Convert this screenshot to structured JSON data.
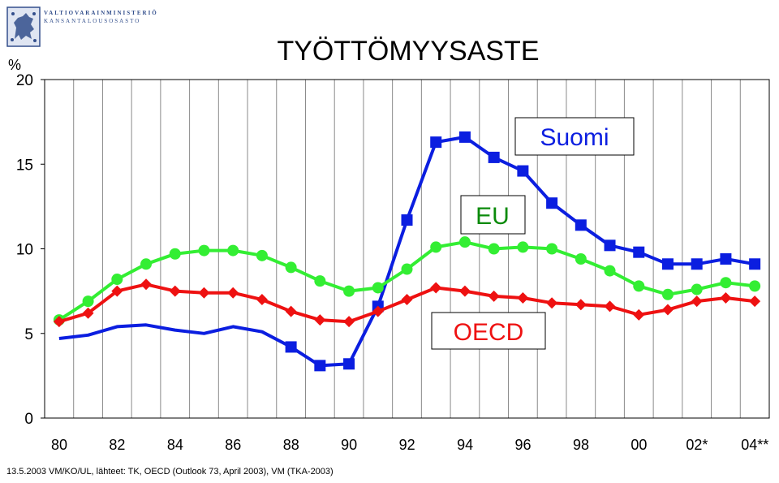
{
  "header": {
    "ministry_line1": "VALTIOVARAINMINISTERIÖ",
    "ministry_line2": "KANSANTALOUSOSASTO"
  },
  "footer": {
    "source_text": "13.5.2003 VM/KO/UL, lähteet:  TK, OECD (Outlook 73, April 2003), VM (TKA-2003)"
  },
  "colors": {
    "suomi": "#0b1ee0",
    "eu": "#33ee33",
    "oecd": "#ee1111",
    "grid": "#8a8a8a"
  },
  "chart_data": {
    "type": "line",
    "title": "TYÖTTÖMYYSASTE",
    "ylabel": "%",
    "xlabel": "",
    "ylim": [
      0,
      20
    ],
    "y_ticks": [
      0,
      5,
      10,
      15,
      20
    ],
    "x": [
      1980,
      1981,
      1982,
      1983,
      1984,
      1985,
      1986,
      1987,
      1988,
      1989,
      1990,
      1991,
      1992,
      1993,
      1994,
      1995,
      1996,
      1997,
      1998,
      1999,
      2000,
      2001,
      2002,
      2003,
      2004
    ],
    "x_tick_labels": [
      "80",
      "82",
      "84",
      "86",
      "88",
      "90",
      "92",
      "94",
      "96",
      "98",
      "00",
      "02*",
      "04**"
    ],
    "grid": true,
    "series": [
      {
        "name": "Suomi",
        "color": "#0b1ee0",
        "marker": "square",
        "markers_from_index": 8,
        "values": [
          4.7,
          4.9,
          5.4,
          5.5,
          5.2,
          5.0,
          5.4,
          5.1,
          4.2,
          3.1,
          3.2,
          6.6,
          11.7,
          16.3,
          16.6,
          15.4,
          14.6,
          12.7,
          11.4,
          10.2,
          9.8,
          9.1,
          9.1,
          9.4,
          9.1
        ]
      },
      {
        "name": "EU",
        "color": "#33ee33",
        "marker": "circle",
        "markers_from_index": 0,
        "values": [
          5.8,
          6.9,
          8.2,
          9.1,
          9.7,
          9.9,
          9.9,
          9.6,
          8.9,
          8.1,
          7.5,
          7.7,
          8.8,
          10.1,
          10.4,
          10.0,
          10.1,
          10.0,
          9.4,
          8.7,
          7.8,
          7.3,
          7.6,
          8.0,
          7.8
        ]
      },
      {
        "name": "OECD",
        "color": "#ee1111",
        "marker": "diamond",
        "markers_from_index": 0,
        "values": [
          5.7,
          6.2,
          7.5,
          7.9,
          7.5,
          7.4,
          7.4,
          7.0,
          6.3,
          5.8,
          5.7,
          6.3,
          7.0,
          7.7,
          7.5,
          7.2,
          7.1,
          6.8,
          6.7,
          6.6,
          6.1,
          6.4,
          6.9,
          7.1,
          6.9
        ]
      }
    ],
    "annotations": [
      "Suomi",
      "EU",
      "OECD"
    ]
  }
}
